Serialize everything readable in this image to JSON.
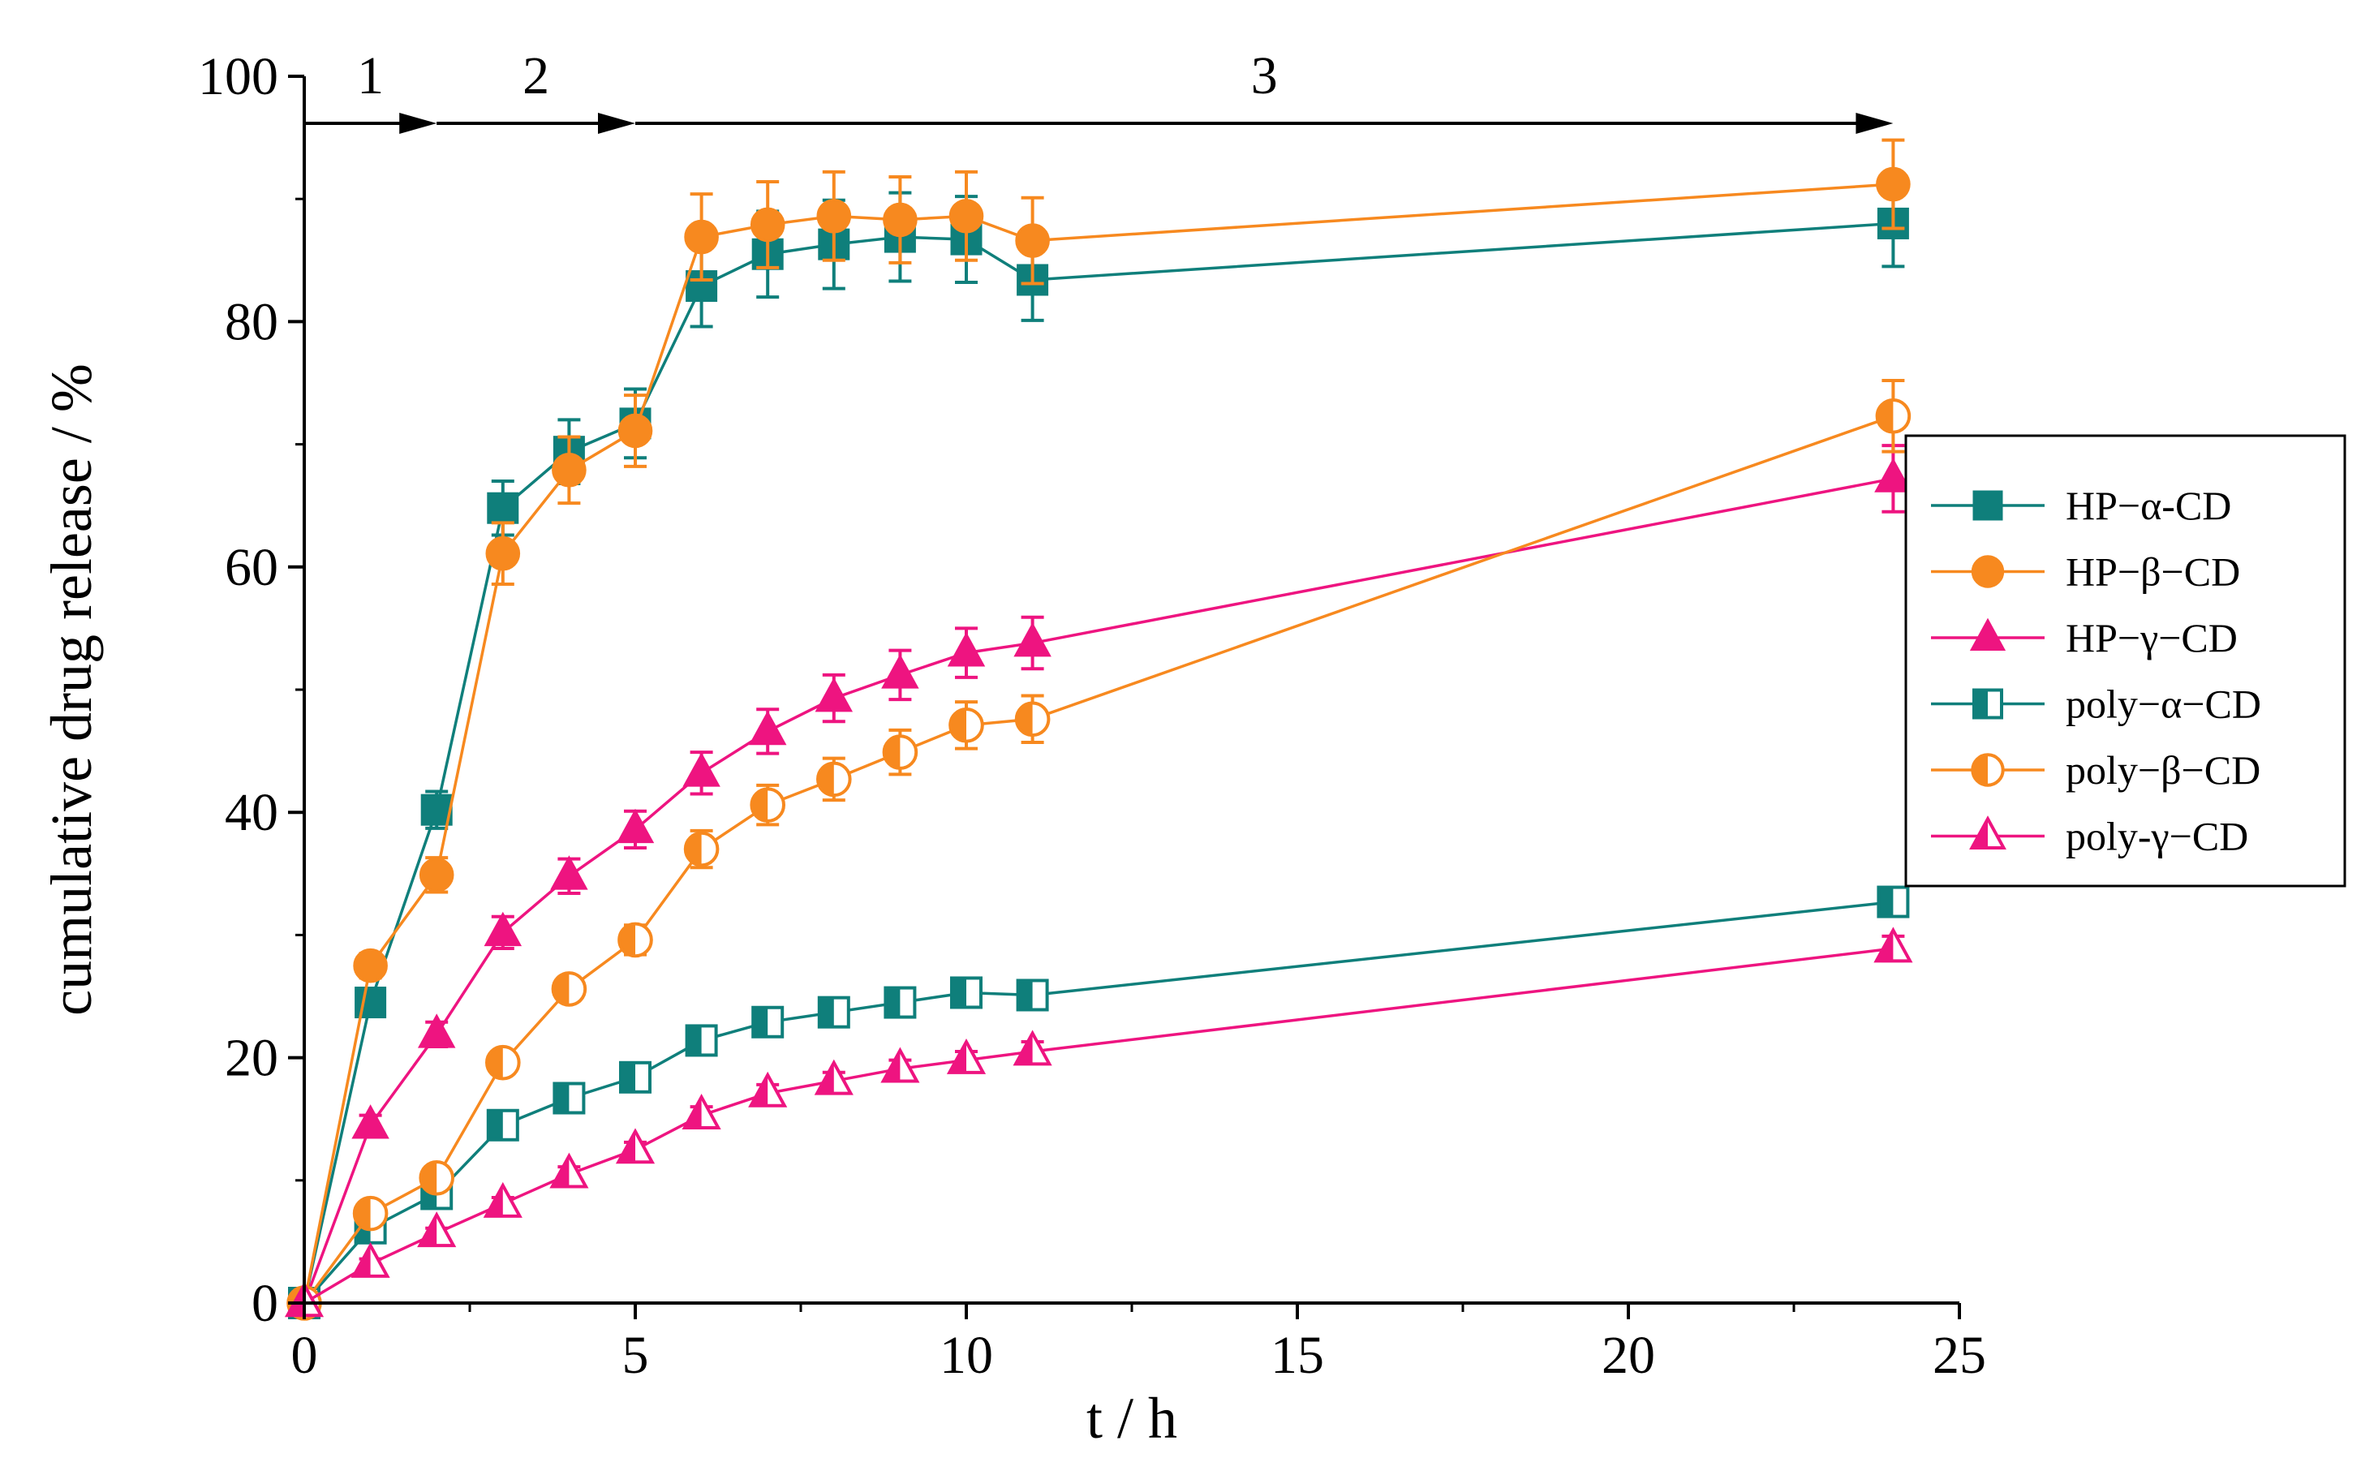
{
  "chart_data": {
    "type": "line",
    "title": "",
    "xlabel": "t / h",
    "ylabel": "cumulative drug release / %",
    "xlim": [
      0,
      25
    ],
    "ylim": [
      0,
      100
    ],
    "xticks": [
      0,
      5,
      10,
      15,
      20,
      25
    ],
    "yticks": [
      0,
      20,
      40,
      60,
      80,
      100
    ],
    "grid": false,
    "legend_position": "right",
    "stages": [
      {
        "label": "1",
        "from": 0,
        "to": 2
      },
      {
        "label": "2",
        "from": 2,
        "to": 5
      },
      {
        "label": "3",
        "from": 5,
        "to": 24
      }
    ],
    "series": [
      {
        "name": "HP−α-CD",
        "color": "#0f7f7b",
        "marker": "square",
        "fill": "full",
        "x": [
          0,
          1,
          2,
          3,
          4,
          5,
          6,
          7,
          8,
          9,
          10,
          11,
          24
        ],
        "y": [
          0,
          24.5,
          40.2,
          64.8,
          69.4,
          71.7,
          82.9,
          85.5,
          86.3,
          86.9,
          86.7,
          83.4,
          88.0
        ],
        "err": [
          0,
          1.0,
          1.5,
          2.2,
          2.6,
          2.8,
          3.3,
          3.5,
          3.6,
          3.6,
          3.5,
          3.3,
          3.5
        ]
      },
      {
        "name": "HP−β−CD",
        "color": "#f7891f",
        "marker": "circle",
        "fill": "full",
        "x": [
          0,
          1,
          2,
          3,
          4,
          5,
          6,
          7,
          8,
          9,
          10,
          11,
          24
        ],
        "y": [
          0,
          27.5,
          34.9,
          61.1,
          67.9,
          71.1,
          86.9,
          87.9,
          88.6,
          88.3,
          88.6,
          86.6,
          91.2
        ],
        "err": [
          0,
          1.0,
          1.4,
          2.5,
          2.7,
          2.9,
          3.5,
          3.5,
          3.6,
          3.5,
          3.6,
          3.5,
          3.6
        ]
      },
      {
        "name": "HP−γ−CD",
        "color": "#ee1480",
        "marker": "triangle",
        "fill": "full",
        "x": [
          0,
          1,
          2,
          3,
          4,
          5,
          6,
          7,
          8,
          9,
          10,
          11,
          24
        ],
        "y": [
          0,
          14.5,
          21.9,
          30.2,
          34.8,
          38.6,
          43.2,
          46.6,
          49.3,
          51.2,
          53.0,
          53.8,
          67.2
        ],
        "err": [
          0,
          0.8,
          1.0,
          1.3,
          1.4,
          1.5,
          1.7,
          1.8,
          1.9,
          2.0,
          2.0,
          2.1,
          2.7
        ]
      },
      {
        "name": "poly−α−CD",
        "color": "#0f7f7b",
        "marker": "square",
        "fill": "half",
        "x": [
          0,
          1,
          2,
          3,
          4,
          5,
          6,
          7,
          8,
          9,
          10,
          11,
          24
        ],
        "y": [
          0,
          6.1,
          8.9,
          14.5,
          16.7,
          18.4,
          21.4,
          22.9,
          23.7,
          24.5,
          25.3,
          25.1,
          32.7
        ],
        "err": [
          0,
          0.4,
          0.5,
          0.7,
          0.7,
          0.7,
          0.8,
          0.8,
          0.8,
          0.8,
          0.8,
          0.8,
          1.1
        ]
      },
      {
        "name": "poly−β−CD",
        "color": "#f7891f",
        "marker": "circle",
        "fill": "half",
        "x": [
          0,
          1,
          2,
          3,
          4,
          5,
          6,
          7,
          8,
          9,
          10,
          11,
          24
        ],
        "y": [
          0,
          7.3,
          10.2,
          19.6,
          25.6,
          29.6,
          37.0,
          40.6,
          42.7,
          44.9,
          47.1,
          47.6,
          72.3
        ],
        "err": [
          0,
          0.5,
          0.6,
          0.9,
          1.0,
          1.2,
          1.5,
          1.6,
          1.7,
          1.8,
          1.9,
          1.9,
          2.9
        ]
      },
      {
        "name": "poly-γ−CD",
        "color": "#ee1480",
        "marker": "triangle",
        "fill": "half",
        "x": [
          0,
          1,
          2,
          3,
          4,
          5,
          6,
          7,
          8,
          9,
          10,
          11,
          24
        ],
        "y": [
          0,
          3.2,
          5.7,
          8.1,
          10.5,
          12.5,
          15.3,
          17.1,
          18.1,
          19.1,
          19.8,
          20.5,
          28.9
        ],
        "err": [
          0,
          0.4,
          0.4,
          0.5,
          0.6,
          0.6,
          0.7,
          0.7,
          0.7,
          0.7,
          0.7,
          0.8,
          1.0
        ]
      }
    ]
  }
}
